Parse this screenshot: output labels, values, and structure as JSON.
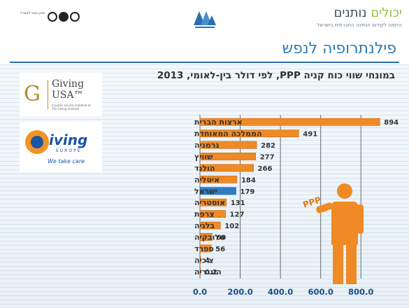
{
  "header": {
    "brand_main": "נותנים",
    "brand_accent": "יכולים",
    "brand_sub": "היוזמה לקידום הנתינה החברתית בישראל",
    "left_logo_text": "מכון סנט לאונרד"
  },
  "page_title": "פילנתרופיה לנפש",
  "chart_title": "במונחי שווי כוח קניה PPP, לפי דולר בין-לאומי, 2013",
  "logos": {
    "giving_usa_mark": "G",
    "giving_usa_line1": "Giving",
    "giving_usa_line2": "USA™",
    "giving_usa_small": "A public service initiative of The Giving Institute",
    "giving_europe_name": "iving",
    "giving_europe_sub": "EUROPE",
    "giving_europe_tag": "We take care"
  },
  "figure_label": "PPP",
  "colors": {
    "bar": "#f08a24",
    "highlight_bar": "#2e7cc4",
    "title": "#2d7ab8",
    "tick": "#1a4f86"
  },
  "chart_data": {
    "type": "bar",
    "orientation": "horizontal",
    "title": "במונחי שווי כוח קניה PPP, לפי דולר בין-לאומי, 2013",
    "categories": [
      "ארצות הברית",
      "הממלכה המאוחדת",
      "גרמניה",
      "שוויץ",
      "הולנד",
      "איטליה",
      "ישראל",
      "אוסטריה",
      "צרפת",
      "בלגיה",
      "סלובקיה",
      "ספרד",
      "צ'כיה",
      "הונגריה"
    ],
    "values": [
      894,
      491,
      282,
      277,
      266,
      184,
      179,
      131,
      127,
      102,
      60,
      56,
      4,
      0.2
    ],
    "value_labels": [
      "894",
      "491",
      "282",
      "277",
      "266",
      "184",
      "179",
      "131",
      "127",
      "102",
      "60",
      "56",
      "4",
      "0.2"
    ],
    "highlight": "ישראל",
    "xlim": [
      0,
      900
    ],
    "ticks": [
      0,
      200,
      400,
      600,
      800
    ],
    "tick_labels": [
      "0.0",
      "200.0",
      "400.0",
      "600.0",
      "800.0"
    ],
    "grid": true,
    "xlabel": "",
    "ylabel": ""
  }
}
